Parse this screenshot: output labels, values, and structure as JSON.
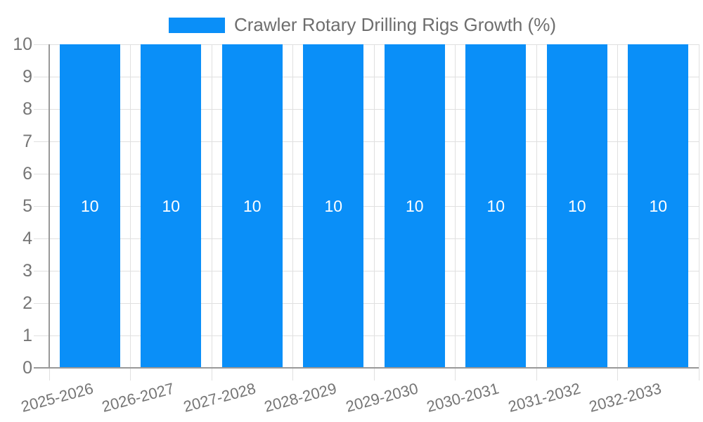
{
  "legend": {
    "label": "Crawler Rotary Drilling Rigs Growth (%)",
    "swatch_color": "#0a8ff8"
  },
  "chart_data": {
    "type": "bar",
    "title": "Crawler Rotary Drilling Rigs Growth (%)",
    "categories": [
      "2025-2026",
      "2026-2027",
      "2027-2028",
      "2028-2029",
      "2029-2030",
      "2030-2031",
      "2031-2032",
      "2032-2033"
    ],
    "values": [
      10,
      10,
      10,
      10,
      10,
      10,
      10,
      10
    ],
    "bar_value_labels": [
      "10",
      "10",
      "10",
      "10",
      "10",
      "10",
      "10",
      "10"
    ],
    "xlabel": "",
    "ylabel": "",
    "ylim": [
      0,
      10
    ],
    "yticks": [
      0,
      1,
      2,
      3,
      4,
      5,
      6,
      7,
      8,
      9,
      10
    ],
    "grid": true,
    "legend_position": "top",
    "x_label_rotation_deg": -15,
    "colors": {
      "bar": "#0a8ff8",
      "value_label": "#ffffff",
      "axis_line": "#999999",
      "grid_line": "#e0e0e0",
      "tick_label": "#757575",
      "legend_text": "#6e6e6e",
      "background": "#ffffff"
    }
  }
}
